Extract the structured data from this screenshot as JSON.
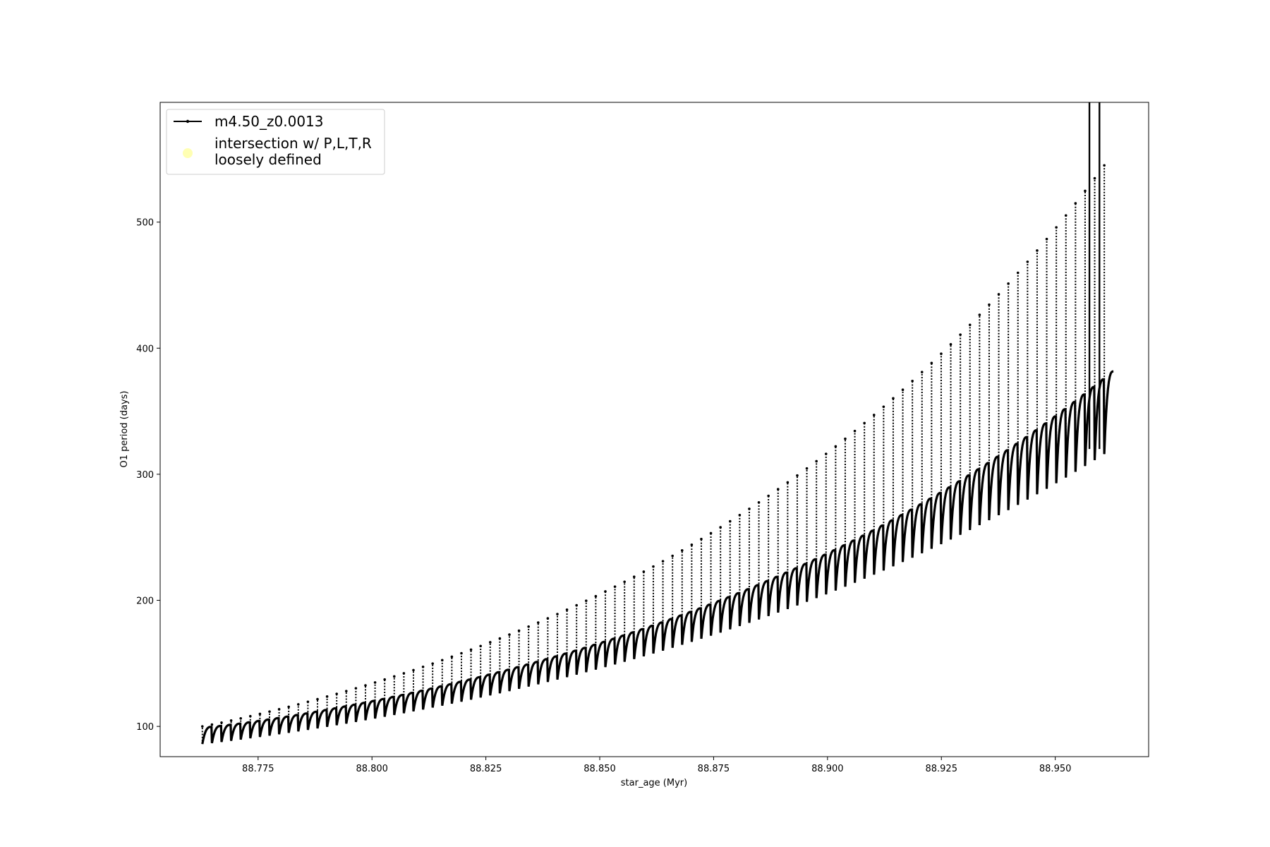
{
  "chart_data": {
    "type": "line",
    "title": "",
    "xlabel": "star_age (Myr)",
    "ylabel": "O1 period (days)",
    "xlim": [
      88.7535,
      88.9705
    ],
    "ylim": [
      76,
      595
    ],
    "xticks": [
      88.775,
      88.8,
      88.825,
      88.85,
      88.875,
      88.9,
      88.925,
      88.95
    ],
    "xtick_labels": [
      "88.775",
      "88.800",
      "88.825",
      "88.850",
      "88.875",
      "88.900",
      "88.925",
      "88.950"
    ],
    "yticks": [
      100,
      200,
      300,
      400,
      500
    ],
    "ytick_labels": [
      "100",
      "200",
      "300",
      "400",
      "500"
    ],
    "grid": false,
    "legend": {
      "location": "upper-left",
      "entries": [
        {
          "label": "m4.50_z0.0013",
          "marker": "line-with-dots",
          "color": "#000000"
        },
        {
          "label": "intersection w/ P,L,T,R\nloosely defined",
          "marker": "circle",
          "color": "#ffffb3"
        }
      ]
    },
    "series": [
      {
        "name": "m4.50_z0.0013",
        "color": "#000000",
        "pulses": {
          "x_start": 88.7635,
          "x_end": 88.9615,
          "count": 95,
          "baseline_start": 94,
          "baseline_end": 360,
          "peak_start": 100,
          "peak_end": 545,
          "trough_start": 86,
          "trough_end": 316
        },
        "final_spikes": [
          {
            "x": 88.9575,
            "y_max": 595
          },
          {
            "x": 88.9597,
            "y_max": 595
          }
        ]
      }
    ]
  }
}
